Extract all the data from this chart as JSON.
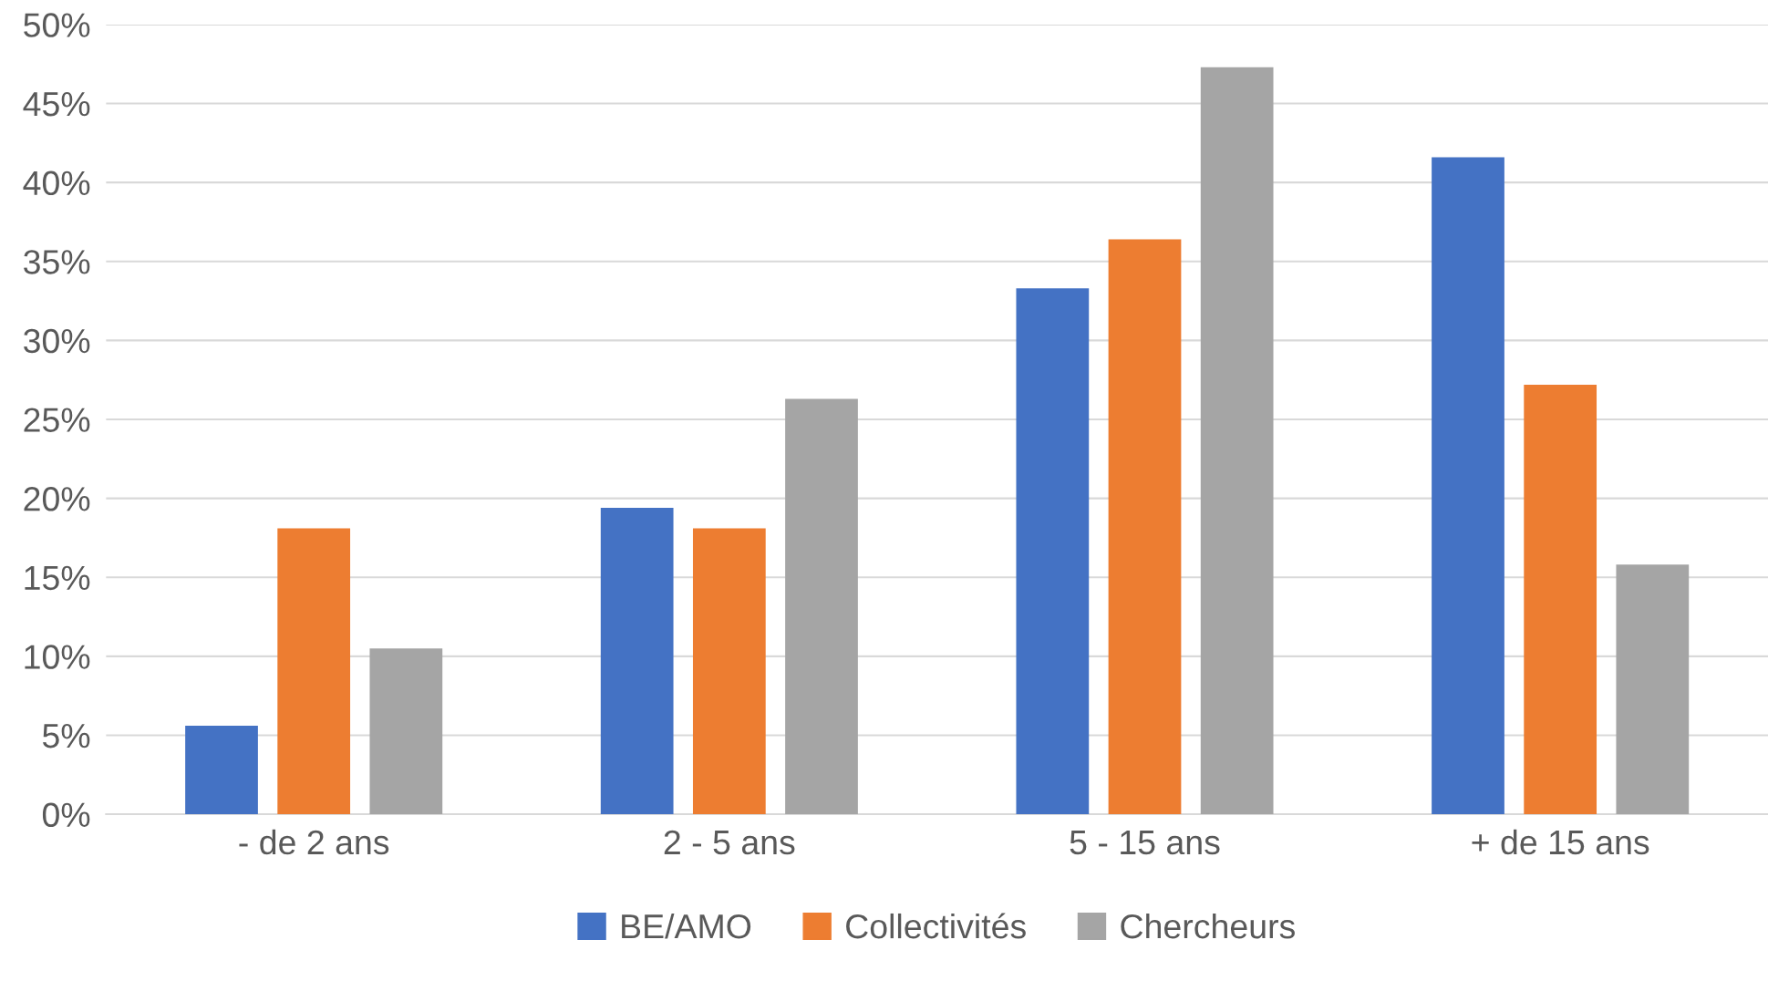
{
  "chart_data": {
    "type": "bar",
    "categories": [
      "- de 2 ans",
      "2 - 5 ans",
      "5 - 15 ans",
      "+ de 15 ans"
    ],
    "series": [
      {
        "name": "BE/AMO",
        "color": "#4472c4",
        "values": [
          5.6,
          19.4,
          33.3,
          41.6
        ]
      },
      {
        "name": "Collectivités",
        "color": "#ed7d31",
        "values": [
          18.1,
          18.1,
          36.4,
          27.2
        ]
      },
      {
        "name": "Chercheurs",
        "color": "#a5a5a5",
        "values": [
          10.5,
          26.3,
          47.3,
          15.8
        ]
      }
    ],
    "ylim": [
      0,
      50
    ],
    "yticks": [
      {
        "value": 0,
        "label": "0%"
      },
      {
        "value": 5,
        "label": "5%"
      },
      {
        "value": 10,
        "label": "10%"
      },
      {
        "value": 15,
        "label": "15%"
      },
      {
        "value": 20,
        "label": "20%"
      },
      {
        "value": 25,
        "label": "25%"
      },
      {
        "value": 30,
        "label": "30%"
      },
      {
        "value": 35,
        "label": "35%"
      },
      {
        "value": 40,
        "label": "40%"
      },
      {
        "value": 45,
        "label": "45%"
      },
      {
        "value": 50,
        "label": "50%"
      }
    ],
    "grid": "y",
    "legend": "bottom"
  }
}
